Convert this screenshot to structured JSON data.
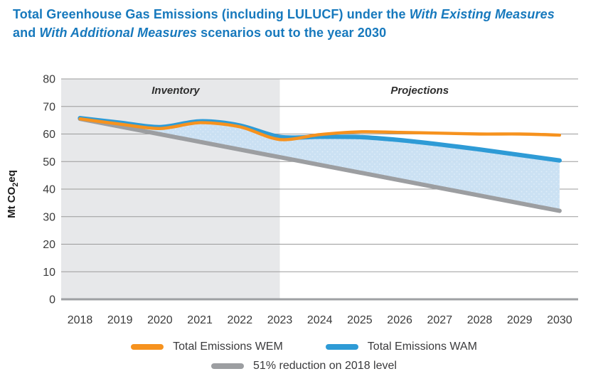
{
  "title": {
    "line1_pre": "Total Greenhouse Gas Emissions (including LULUCF) under the ",
    "line1_italic": "With Existing Measures",
    "line2_pre": "and ",
    "line2_italic": "With Additional Measures",
    "line2_post": " scenarios out to the year 2030"
  },
  "ylabel": {
    "pre": "Mt CO",
    "sub": "2",
    "post": "eq"
  },
  "legend": [
    {
      "label": "Total Emissions WEM",
      "color": "#F6921E"
    },
    {
      "label": "Total Emissions WAM",
      "color": "#2E9BD6"
    },
    {
      "label": "51% reduction on 2018 level",
      "color": "#9C9EA1"
    }
  ],
  "colors": {
    "title_blue": "#1779BD",
    "wem_orange": "#F6921E",
    "wam_blue": "#2E9BD6",
    "target_gray": "#9C9EA1",
    "fill_light_blue": "#C9E0F3",
    "inventory_bg": "#E7E8EA",
    "gridline": "#9B9B9B",
    "axis_line": "#9EA0A3",
    "tick_text": "#3B3B3B",
    "region_text": "#2E2E2E"
  },
  "chart_data": {
    "type": "line",
    "title": "Total Greenhouse Gas Emissions (including LULUCF) under the With Existing Measures and With Additional Measures scenarios out to the year 2030",
    "categories": [
      2018,
      2019,
      2020,
      2021,
      2022,
      2023,
      2024,
      2025,
      2026,
      2027,
      2028,
      2029,
      2030
    ],
    "series": [
      {
        "name": "Total Emissions WEM",
        "color": "#F6921E",
        "values": [
          65.5,
          63.6,
          62.0,
          64.1,
          62.6,
          58.0,
          59.8,
          60.8,
          60.6,
          60.3,
          60.0,
          60.0,
          59.6
        ]
      },
      {
        "name": "Total Emissions WAM",
        "color": "#2E9BD6",
        "values": [
          65.5,
          63.6,
          62.0,
          64.1,
          62.6,
          58.0,
          59.0,
          58.9,
          57.8,
          56.2,
          54.4,
          52.4,
          50.4
        ]
      },
      {
        "name": "51% reduction on 2018 level",
        "color": "#9C9EA1",
        "values": [
          65.5,
          62.7,
          59.9,
          57.2,
          54.4,
          51.6,
          48.8,
          46.0,
          43.2,
          40.5,
          37.7,
          34.9,
          32.1
        ]
      }
    ],
    "xlabel": "",
    "ylabel": "Mt CO2eq",
    "ylim": [
      0,
      80
    ],
    "yticks": [
      0,
      10,
      20,
      30,
      40,
      50,
      60,
      70,
      80
    ],
    "grid": true,
    "legend_position": "bottom",
    "regions": [
      {
        "label": "Inventory",
        "from": 2018,
        "to": 2023
      },
      {
        "label": "Projections",
        "from": 2023,
        "to": 2030
      }
    ],
    "fill_between": {
      "upper": "Total Emissions WAM",
      "lower": "51% reduction on 2018 level",
      "color": "#C9E0F3"
    }
  }
}
